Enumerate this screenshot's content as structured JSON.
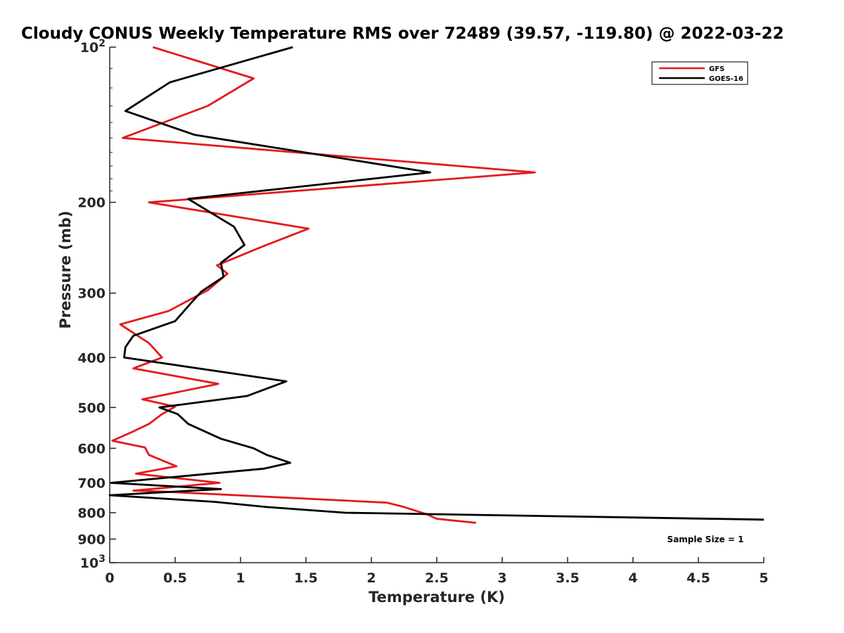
{
  "chart_data": {
    "type": "line",
    "title": "Cloudy CONUS Weekly Temperature RMS over 72489 (39.57, -119.80) @ 2022-03-22",
    "xlabel": "Temperature (K)",
    "ylabel": "Pressure (mb)",
    "xlim": [
      0,
      5
    ],
    "ylim": [
      100,
      1000
    ],
    "y_scale": "log",
    "y_reversed": true,
    "x_ticks": [
      "0",
      "0.5",
      "1",
      "1.5",
      "2",
      "2.5",
      "3",
      "3.5",
      "4",
      "4.5",
      "5"
    ],
    "y_ticks": [
      {
        "value": 100,
        "base": "10",
        "exp": "2"
      },
      {
        "value": 200,
        "label": "200"
      },
      {
        "value": 300,
        "label": "300"
      },
      {
        "value": 400,
        "label": "400"
      },
      {
        "value": 500,
        "label": "500"
      },
      {
        "value": 600,
        "label": "600"
      },
      {
        "value": 700,
        "label": "700"
      },
      {
        "value": 800,
        "label": "800"
      },
      {
        "value": 900,
        "label": "900"
      },
      {
        "value": 1000,
        "base": "10",
        "exp": "3"
      }
    ],
    "legend_position": "top-right",
    "annotation": "Sample Size = 1",
    "series": [
      {
        "name": "GFS",
        "color": "#e41a1c",
        "points": [
          [
            0.33,
            100
          ],
          [
            1.1,
            115
          ],
          [
            0.75,
            130
          ],
          [
            0.1,
            150
          ],
          [
            3.25,
            175
          ],
          [
            0.3,
            200
          ],
          [
            1.52,
            225
          ],
          [
            1.18,
            243
          ],
          [
            0.82,
            265
          ],
          [
            0.9,
            275
          ],
          [
            0.75,
            296
          ],
          [
            0.45,
            325
          ],
          [
            0.08,
            345
          ],
          [
            0.3,
            375
          ],
          [
            0.4,
            400
          ],
          [
            0.18,
            420
          ],
          [
            0.83,
            450
          ],
          [
            0.25,
            482
          ],
          [
            0.5,
            498
          ],
          [
            0.4,
            515
          ],
          [
            0.3,
            538
          ],
          [
            0.17,
            558
          ],
          [
            0.02,
            580
          ],
          [
            0.27,
            598
          ],
          [
            0.3,
            618
          ],
          [
            0.51,
            650
          ],
          [
            0.2,
            672
          ],
          [
            0.84,
            700
          ],
          [
            0.18,
            725
          ],
          [
            0.4,
            728
          ],
          [
            2.12,
            765
          ],
          [
            2.25,
            780
          ],
          [
            2.42,
            805
          ],
          [
            2.5,
            822
          ],
          [
            2.8,
            837
          ]
        ]
      },
      {
        "name": "GOES-16",
        "color": "#000000",
        "points": [
          [
            1.4,
            100
          ],
          [
            0.46,
            117
          ],
          [
            0.12,
            133
          ],
          [
            0.65,
            148
          ],
          [
            2.45,
            175
          ],
          [
            0.6,
            197
          ],
          [
            0.95,
            223
          ],
          [
            1.03,
            242
          ],
          [
            0.85,
            262
          ],
          [
            0.87,
            279
          ],
          [
            0.7,
            298
          ],
          [
            0.62,
            314
          ],
          [
            0.5,
            340
          ],
          [
            0.18,
            363
          ],
          [
            0.12,
            382
          ],
          [
            0.11,
            400
          ],
          [
            1.35,
            445
          ],
          [
            1.05,
            475
          ],
          [
            0.38,
            500
          ],
          [
            0.52,
            515
          ],
          [
            0.6,
            538
          ],
          [
            0.85,
            575
          ],
          [
            1.1,
            600
          ],
          [
            1.2,
            618
          ],
          [
            1.38,
            640
          ],
          [
            1.18,
            657
          ],
          [
            0.01,
            700
          ],
          [
            0.85,
            720
          ],
          [
            0.0,
            740
          ],
          [
            0.8,
            762
          ],
          [
            1.2,
            780
          ],
          [
            1.8,
            800
          ],
          [
            5.0,
            825
          ]
        ]
      }
    ]
  }
}
